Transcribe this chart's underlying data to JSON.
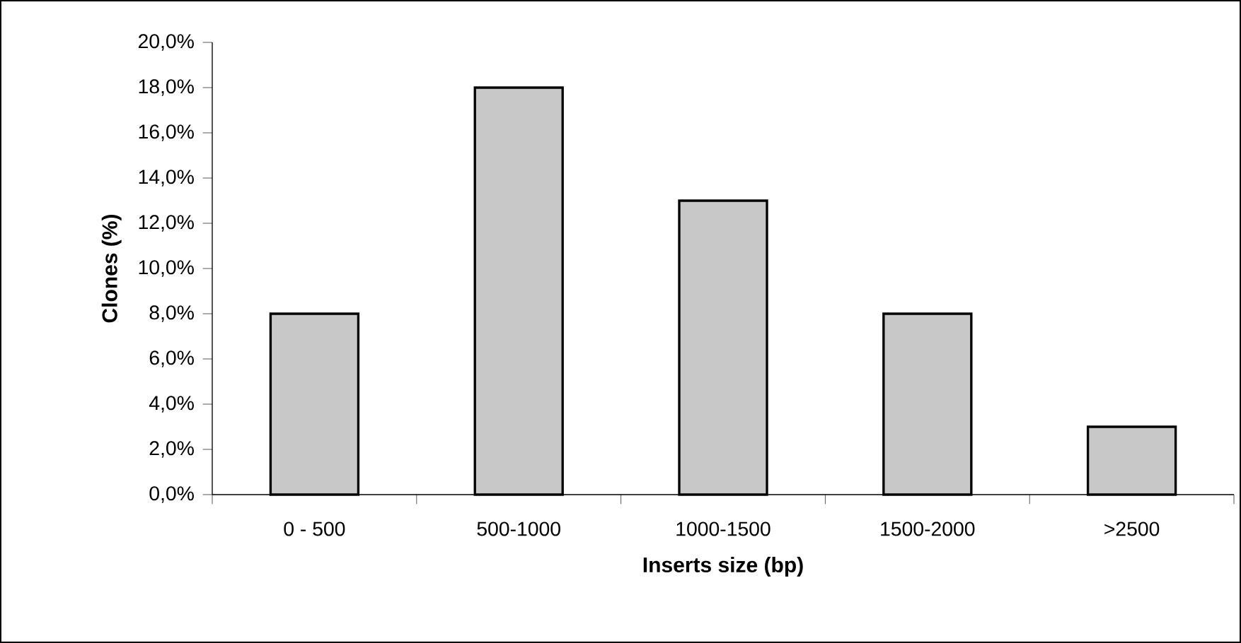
{
  "chart_data": {
    "type": "bar",
    "xlabel": "Inserts size (bp)",
    "ylabel": "Clones  (%)",
    "categories": [
      "0 - 500",
      "500-1000",
      "1000-1500",
      "1500-2000",
      ">2500"
    ],
    "values": [
      8,
      18,
      13,
      8,
      3
    ],
    "color": "#c8c8c8",
    "ylim": [
      0,
      20
    ],
    "yticks": [
      {
        "value": 0,
        "label": "0,0%"
      },
      {
        "value": 2,
        "label": "2,0%"
      },
      {
        "value": 4,
        "label": "4,0%"
      },
      {
        "value": 6,
        "label": "6,0%"
      },
      {
        "value": 8,
        "label": "8,0%"
      },
      {
        "value": 10,
        "label": "10,0%"
      },
      {
        "value": 12,
        "label": "12,0%"
      },
      {
        "value": 14,
        "label": "14,0%"
      },
      {
        "value": 16,
        "label": "16,0%"
      },
      {
        "value": 18,
        "label": "18,0%"
      },
      {
        "value": 20,
        "label": "20,0%"
      }
    ]
  }
}
